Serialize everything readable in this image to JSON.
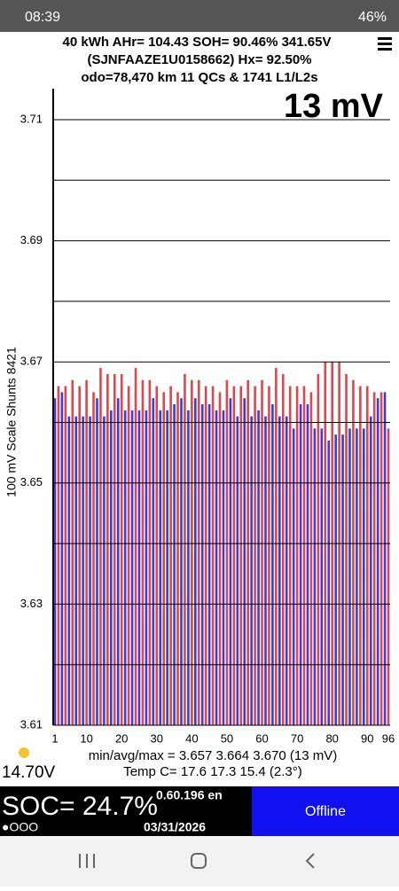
{
  "status_bar": {
    "time": "08:39",
    "battery": "46%"
  },
  "header": {
    "line1": "40 kWh  AHr= 104.43  SOH= 90.46%   341.65V",
    "line2": "(SJNFAAZE1U0158662)   Hx= 92.50%",
    "line3": "odo=78,470 km 11 QCs & 1741 L1/L2s"
  },
  "chart_data": {
    "type": "bar",
    "annotation": "13 mV",
    "y_label": "100 mV Scale Shunts 8421",
    "categories": [
      1,
      2,
      3,
      4,
      5,
      6,
      7,
      8,
      9,
      10,
      11,
      12,
      13,
      14,
      15,
      16,
      17,
      18,
      19,
      20,
      21,
      22,
      23,
      24,
      25,
      26,
      27,
      28,
      29,
      30,
      31,
      32,
      33,
      34,
      35,
      36,
      37,
      38,
      39,
      40,
      41,
      42,
      43,
      44,
      45,
      46,
      47,
      48,
      49,
      50,
      51,
      52,
      53,
      54,
      55,
      56,
      57,
      58,
      59,
      60,
      61,
      62,
      63,
      64,
      65,
      66,
      67,
      68,
      69,
      70,
      71,
      72,
      73,
      74,
      75,
      76,
      77,
      78,
      79,
      80,
      81,
      82,
      83,
      84,
      85,
      86,
      87,
      88,
      89,
      90,
      91,
      92,
      93,
      94,
      95,
      96
    ],
    "values": [
      3.664,
      3.666,
      3.665,
      3.666,
      3.661,
      3.667,
      3.661,
      3.666,
      3.661,
      3.667,
      3.661,
      3.665,
      3.664,
      3.669,
      3.661,
      3.668,
      3.662,
      3.668,
      3.664,
      3.668,
      3.662,
      3.666,
      3.662,
      3.669,
      3.662,
      3.667,
      3.662,
      3.667,
      3.664,
      3.666,
      3.662,
      3.665,
      3.662,
      3.666,
      3.663,
      3.665,
      3.664,
      3.668,
      3.662,
      3.667,
      3.664,
      3.667,
      3.663,
      3.666,
      3.663,
      3.666,
      3.662,
      3.665,
      3.662,
      3.667,
      3.664,
      3.666,
      3.661,
      3.666,
      3.664,
      3.667,
      3.661,
      3.666,
      3.662,
      3.667,
      3.661,
      3.666,
      3.663,
      3.669,
      3.661,
      3.668,
      3.661,
      3.666,
      3.659,
      3.666,
      3.663,
      3.666,
      3.663,
      3.665,
      3.659,
      3.668,
      3.659,
      3.67,
      3.657,
      3.67,
      3.658,
      3.67,
      3.658,
      3.668,
      3.659,
      3.667,
      3.659,
      3.666,
      3.659,
      3.666,
      3.661,
      3.665,
      3.664,
      3.665,
      3.665,
      3.659
    ],
    "colors": [
      "#3c3cd8",
      "#e0474c"
    ],
    "ylim": [
      3.61,
      3.71
    ],
    "yticks": [
      3.61,
      3.63,
      3.65,
      3.67,
      3.69,
      3.71
    ],
    "minor_yticks": [
      3.62,
      3.64,
      3.66,
      3.68,
      3.7
    ],
    "xticks": [
      1,
      10,
      20,
      30,
      40,
      50,
      60,
      70,
      80,
      90,
      96
    ],
    "grid": true,
    "stats": "min/avg/max = 3.657 3.664 3.670  (13 mV)",
    "temps": "Temp C= 17.6  17.3  15.4  (2.3°)"
  },
  "footer": {
    "voltage": "14.70V",
    "soc": "SOC= 24.7%",
    "dots": "●OOO",
    "version": "0.60.196 en",
    "date": "03/31/2026",
    "status": "Offline"
  }
}
